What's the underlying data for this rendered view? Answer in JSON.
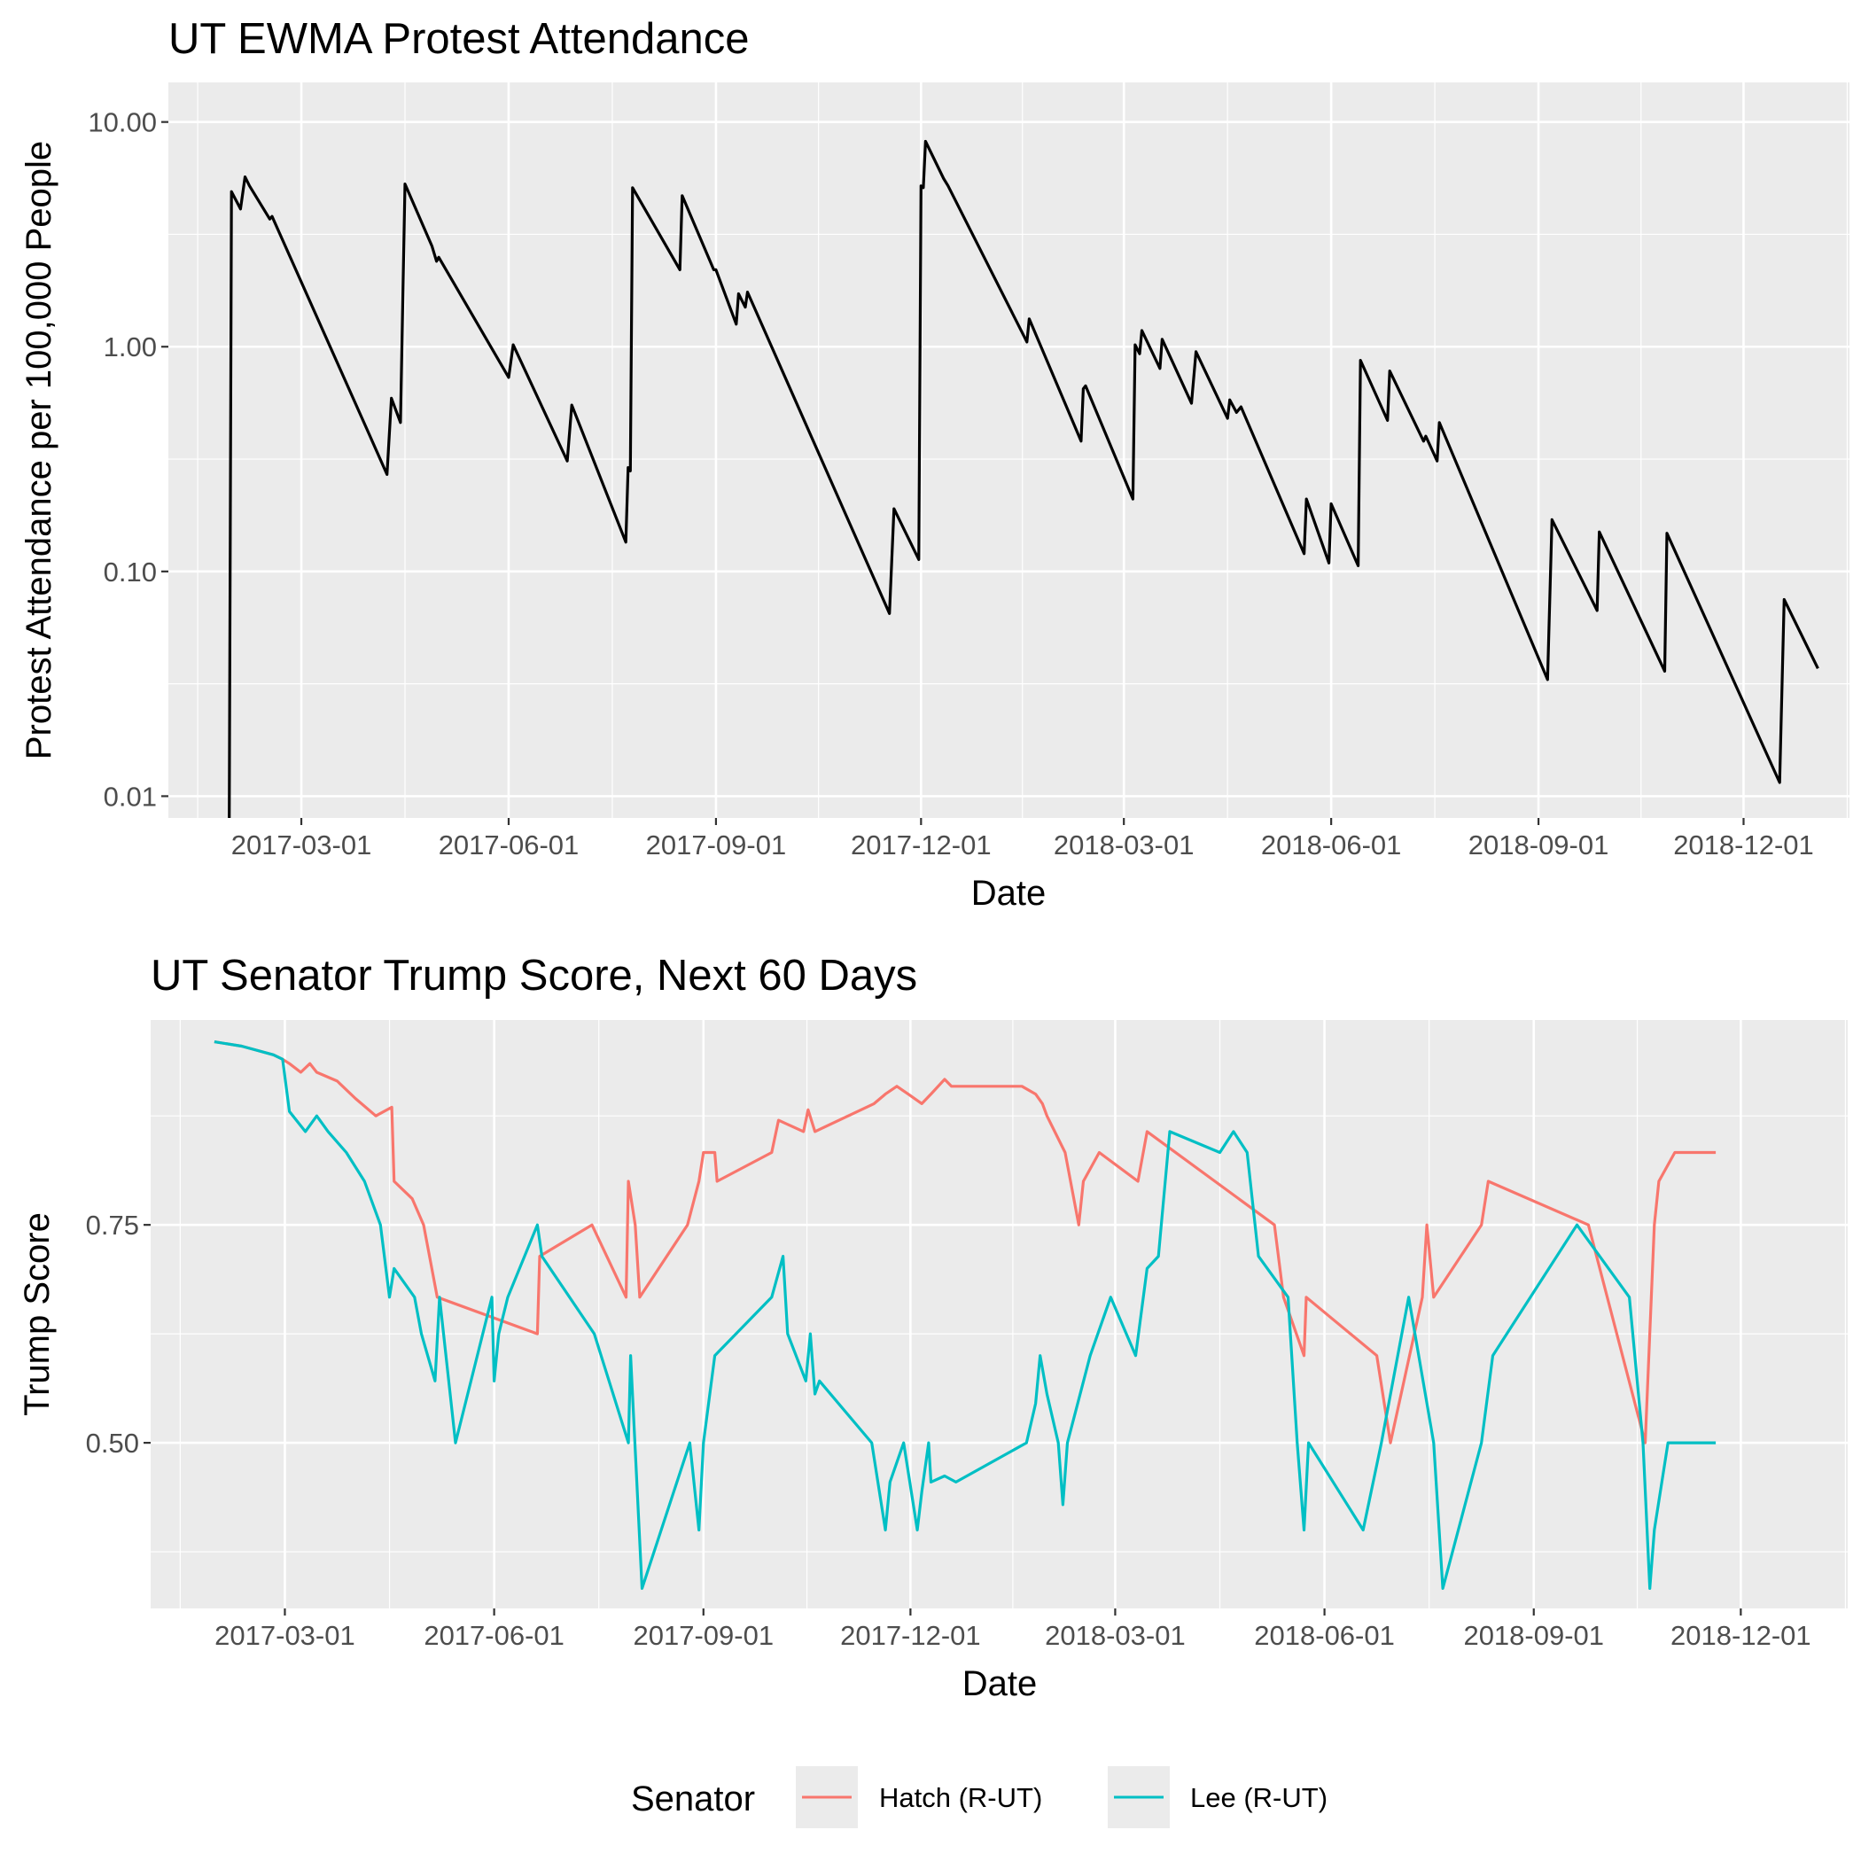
{
  "chart_data": [
    {
      "type": "line",
      "title": "UT EWMA Protest Attendance",
      "xlabel": "Date",
      "ylabel": "Protest Attendance per 100,000 People",
      "y_scale": "log10",
      "ylim": [
        0.008,
        15
      ],
      "xlim": [
        "2017-01-01",
        "2019-01-17"
      ],
      "x_ticks": [
        "2017-03-01",
        "2017-06-01",
        "2017-09-01",
        "2017-12-01",
        "2018-03-01",
        "2018-06-01",
        "2018-09-01",
        "2018-12-01"
      ],
      "y_ticks": [
        "0.01",
        "0.10",
        "1.00",
        "10.00"
      ],
      "grid": true,
      "series": [
        {
          "color": "#000000",
          "points": [
            [
              "2017-01-28",
              0.008
            ],
            [
              "2017-01-29",
              4.9
            ],
            [
              "2017-02-02",
              4.1
            ],
            [
              "2017-02-04",
              5.7
            ],
            [
              "2017-02-06",
              5.2
            ],
            [
              "2017-02-15",
              3.7
            ],
            [
              "2017-02-16",
              3.8
            ],
            [
              "2017-03-31",
              0.41
            ],
            [
              "2017-04-08",
              0.27
            ],
            [
              "2017-04-10",
              0.59
            ],
            [
              "2017-04-14",
              0.46
            ],
            [
              "2017-04-16",
              5.3
            ],
            [
              "2017-04-28",
              2.8
            ],
            [
              "2017-04-30",
              2.4
            ],
            [
              "2017-05-01",
              2.5
            ],
            [
              "2017-06-01",
              0.73
            ],
            [
              "2017-06-03",
              1.02
            ],
            [
              "2017-06-27",
              0.31
            ],
            [
              "2017-06-29",
              0.55
            ],
            [
              "2017-07-23",
              0.135
            ],
            [
              "2017-07-24",
              0.29
            ],
            [
              "2017-07-25",
              0.28
            ],
            [
              "2017-07-26",
              5.1
            ],
            [
              "2017-08-16",
              2.2
            ],
            [
              "2017-08-17",
              4.7
            ],
            [
              "2017-08-31",
              2.2
            ],
            [
              "2017-09-01",
              2.2
            ],
            [
              "2017-09-10",
              1.26
            ],
            [
              "2017-09-11",
              1.72
            ],
            [
              "2017-09-14",
              1.5
            ],
            [
              "2017-09-15",
              1.75
            ],
            [
              "2017-11-17",
              0.065
            ],
            [
              "2017-11-19",
              0.19
            ],
            [
              "2017-11-30",
              0.113
            ],
            [
              "2017-12-01",
              5.2
            ],
            [
              "2017-12-02",
              5.1
            ],
            [
              "2017-12-03",
              8.2
            ],
            [
              "2017-12-11",
              5.6
            ],
            [
              "2017-12-13",
              5.2
            ],
            [
              "2018-01-17",
              1.05
            ],
            [
              "2018-01-18",
              1.33
            ],
            [
              "2018-02-10",
              0.38
            ],
            [
              "2018-02-11",
              0.65
            ],
            [
              "2018-02-12",
              0.67
            ],
            [
              "2018-03-05",
              0.21
            ],
            [
              "2018-03-06",
              1.02
            ],
            [
              "2018-03-08",
              0.93
            ],
            [
              "2018-03-09",
              1.18
            ],
            [
              "2018-03-17",
              0.8
            ],
            [
              "2018-03-18",
              1.08
            ],
            [
              "2018-03-31",
              0.56
            ],
            [
              "2018-04-02",
              0.95
            ],
            [
              "2018-04-16",
              0.48
            ],
            [
              "2018-04-17",
              0.58
            ],
            [
              "2018-04-20",
              0.51
            ],
            [
              "2018-04-22",
              0.54
            ],
            [
              "2018-05-20",
              0.12
            ],
            [
              "2018-05-21",
              0.21
            ],
            [
              "2018-05-31",
              0.109
            ],
            [
              "2018-06-01",
              0.2
            ],
            [
              "2018-06-13",
              0.106
            ],
            [
              "2018-06-14",
              0.87
            ],
            [
              "2018-06-26",
              0.47
            ],
            [
              "2018-06-27",
              0.78
            ],
            [
              "2018-07-12",
              0.38
            ],
            [
              "2018-07-13",
              0.4
            ],
            [
              "2018-07-18",
              0.31
            ],
            [
              "2018-07-19",
              0.46
            ],
            [
              "2018-09-05",
              0.033
            ],
            [
              "2018-09-07",
              0.17
            ],
            [
              "2018-09-27",
              0.067
            ],
            [
              "2018-09-28",
              0.15
            ],
            [
              "2018-10-27",
              0.036
            ],
            [
              "2018-10-28",
              0.148
            ],
            [
              "2018-12-17",
              0.0115
            ],
            [
              "2018-12-19",
              0.075
            ],
            [
              "2019-01-03",
              0.037
            ]
          ]
        }
      ]
    },
    {
      "type": "line",
      "title": "UT Senator Trump Score, Next 60 Days",
      "xlabel": "Date",
      "ylabel": "Trump Score",
      "ylim": [
        0.31,
        0.985
      ],
      "xlim": [
        "2017-01-01",
        "2019-01-17"
      ],
      "x_ticks": [
        "2017-03-01",
        "2017-06-01",
        "2017-09-01",
        "2017-12-01",
        "2018-03-01",
        "2018-06-01",
        "2018-09-01",
        "2018-12-01"
      ],
      "y_ticks": [
        "0.50",
        "0.75"
      ],
      "grid": true,
      "legend": {
        "title": "Senator",
        "position": "bottom"
      },
      "series": [
        {
          "name": "Hatch (R-UT)",
          "color": "#F8766D",
          "points": [
            [
              "2017-01-29",
              0.96
            ],
            [
              "2017-02-10",
              0.955
            ],
            [
              "2017-02-24",
              0.945
            ],
            [
              "2017-02-28",
              0.94
            ],
            [
              "2017-03-03",
              0.935
            ],
            [
              "2017-03-08",
              0.925
            ],
            [
              "2017-03-12",
              0.935
            ],
            [
              "2017-03-15",
              0.925
            ],
            [
              "2017-03-24",
              0.915
            ],
            [
              "2017-04-01",
              0.895
            ],
            [
              "2017-04-10",
              0.875
            ],
            [
              "2017-04-17",
              0.885
            ],
            [
              "2017-04-18",
              0.8
            ],
            [
              "2017-04-26",
              0.78
            ],
            [
              "2017-05-01",
              0.75
            ],
            [
              "2017-05-07",
              0.667
            ],
            [
              "2017-06-20",
              0.625
            ],
            [
              "2017-06-21",
              0.714
            ],
            [
              "2017-07-14",
              0.75
            ],
            [
              "2017-07-29",
              0.667
            ],
            [
              "2017-07-30",
              0.8
            ],
            [
              "2017-08-02",
              0.75
            ],
            [
              "2017-08-04",
              0.667
            ],
            [
              "2017-08-25",
              0.75
            ],
            [
              "2017-08-30",
              0.8
            ],
            [
              "2017-09-01",
              0.833
            ],
            [
              "2017-09-06",
              0.833
            ],
            [
              "2017-09-07",
              0.8
            ],
            [
              "2017-10-01",
              0.833
            ],
            [
              "2017-10-04",
              0.87
            ],
            [
              "2017-10-15",
              0.857
            ],
            [
              "2017-10-17",
              0.882
            ],
            [
              "2017-10-20",
              0.857
            ],
            [
              "2017-11-15",
              0.889
            ],
            [
              "2017-11-20",
              0.9
            ],
            [
              "2017-11-25",
              0.909
            ],
            [
              "2017-11-30",
              0.9
            ],
            [
              "2017-12-06",
              0.889
            ],
            [
              "2017-12-10",
              0.9
            ],
            [
              "2017-12-16",
              0.917
            ],
            [
              "2017-12-19",
              0.909
            ],
            [
              "2018-01-19",
              0.909
            ],
            [
              "2018-01-25",
              0.9
            ],
            [
              "2018-01-28",
              0.889
            ],
            [
              "2018-01-30",
              0.875
            ],
            [
              "2018-02-07",
              0.833
            ],
            [
              "2018-02-13",
              0.75
            ],
            [
              "2018-02-15",
              0.8
            ],
            [
              "2018-02-22",
              0.833
            ],
            [
              "2018-03-11",
              0.8
            ],
            [
              "2018-03-15",
              0.857
            ],
            [
              "2018-05-10",
              0.75
            ],
            [
              "2018-05-14",
              0.667
            ],
            [
              "2018-05-23",
              0.6
            ],
            [
              "2018-05-24",
              0.667
            ],
            [
              "2018-06-24",
              0.6
            ],
            [
              "2018-06-30",
              0.5
            ],
            [
              "2018-07-14",
              0.667
            ],
            [
              "2018-07-16",
              0.75
            ],
            [
              "2018-07-19",
              0.667
            ],
            [
              "2018-08-09",
              0.75
            ],
            [
              "2018-08-12",
              0.8
            ],
            [
              "2018-09-25",
              0.75
            ],
            [
              "2018-10-20",
              0.5
            ],
            [
              "2018-10-24",
              0.75
            ],
            [
              "2018-10-26",
              0.8
            ],
            [
              "2018-11-02",
              0.833
            ],
            [
              "2018-11-20",
              0.833
            ]
          ]
        },
        {
          "name": "Lee (R-UT)",
          "color": "#00BFC4",
          "points": [
            [
              "2017-01-29",
              0.96
            ],
            [
              "2017-02-10",
              0.955
            ],
            [
              "2017-02-24",
              0.945
            ],
            [
              "2017-02-28",
              0.94
            ],
            [
              "2017-03-03",
              0.88
            ],
            [
              "2017-03-10",
              0.857
            ],
            [
              "2017-03-15",
              0.875
            ],
            [
              "2017-03-20",
              0.857
            ],
            [
              "2017-03-28",
              0.833
            ],
            [
              "2017-04-05",
              0.8
            ],
            [
              "2017-04-12",
              0.75
            ],
            [
              "2017-04-16",
              0.667
            ],
            [
              "2017-04-18",
              0.7
            ],
            [
              "2017-04-27",
              0.667
            ],
            [
              "2017-04-30",
              0.625
            ],
            [
              "2017-05-06",
              0.571
            ],
            [
              "2017-05-08",
              0.667
            ],
            [
              "2017-05-15",
              0.5
            ],
            [
              "2017-05-31",
              0.667
            ],
            [
              "2017-06-01",
              0.571
            ],
            [
              "2017-06-03",
              0.625
            ],
            [
              "2017-06-07",
              0.667
            ],
            [
              "2017-06-20",
              0.75
            ],
            [
              "2017-06-22",
              0.714
            ],
            [
              "2017-07-15",
              0.625
            ],
            [
              "2017-07-30",
              0.5
            ],
            [
              "2017-07-31",
              0.6
            ],
            [
              "2017-08-05",
              0.333
            ],
            [
              "2017-08-26",
              0.5
            ],
            [
              "2017-08-30",
              0.4
            ],
            [
              "2017-09-01",
              0.5
            ],
            [
              "2017-09-06",
              0.6
            ],
            [
              "2017-10-01",
              0.667
            ],
            [
              "2017-10-06",
              0.714
            ],
            [
              "2017-10-08",
              0.625
            ],
            [
              "2017-10-16",
              0.571
            ],
            [
              "2017-10-18",
              0.625
            ],
            [
              "2017-10-20",
              0.556
            ],
            [
              "2017-10-22",
              0.571
            ],
            [
              "2017-11-14",
              0.5
            ],
            [
              "2017-11-20",
              0.4
            ],
            [
              "2017-11-22",
              0.455
            ],
            [
              "2017-11-28",
              0.5
            ],
            [
              "2017-12-04",
              0.4
            ],
            [
              "2017-12-06",
              0.444
            ],
            [
              "2017-12-09",
              0.5
            ],
            [
              "2017-12-10",
              0.455
            ],
            [
              "2017-12-16",
              0.462
            ],
            [
              "2017-12-21",
              0.455
            ],
            [
              "2018-01-21",
              0.5
            ],
            [
              "2018-01-25",
              0.545
            ],
            [
              "2018-01-27",
              0.6
            ],
            [
              "2018-01-30",
              0.556
            ],
            [
              "2018-02-04",
              0.5
            ],
            [
              "2018-02-06",
              0.429
            ],
            [
              "2018-02-08",
              0.5
            ],
            [
              "2018-02-18",
              0.6
            ],
            [
              "2018-02-27",
              0.667
            ],
            [
              "2018-03-10",
              0.6
            ],
            [
              "2018-03-15",
              0.7
            ],
            [
              "2018-03-20",
              0.714
            ],
            [
              "2018-03-25",
              0.857
            ],
            [
              "2018-04-16",
              0.833
            ],
            [
              "2018-04-22",
              0.857
            ],
            [
              "2018-04-28",
              0.833
            ],
            [
              "2018-05-03",
              0.714
            ],
            [
              "2018-05-16",
              0.667
            ],
            [
              "2018-05-20",
              0.5
            ],
            [
              "2018-05-23",
              0.4
            ],
            [
              "2018-05-25",
              0.5
            ],
            [
              "2018-06-18",
              0.4
            ],
            [
              "2018-06-26",
              0.5
            ],
            [
              "2018-07-08",
              0.667
            ],
            [
              "2018-07-19",
              0.5
            ],
            [
              "2018-07-23",
              0.333
            ],
            [
              "2018-08-09",
              0.5
            ],
            [
              "2018-08-14",
              0.6
            ],
            [
              "2018-09-20",
              0.75
            ],
            [
              "2018-10-13",
              0.667
            ],
            [
              "2018-10-19",
              0.5
            ],
            [
              "2018-10-22",
              0.333
            ],
            [
              "2018-10-24",
              0.4
            ],
            [
              "2018-10-30",
              0.5
            ],
            [
              "2018-11-20",
              0.5
            ]
          ]
        }
      ]
    }
  ]
}
